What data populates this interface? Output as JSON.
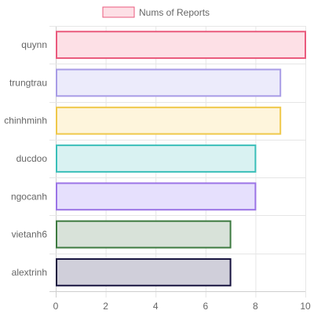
{
  "chart_data": {
    "type": "bar",
    "orientation": "horizontal",
    "categories": [
      "quynn",
      "trungtrau",
      "chinhminh",
      "ducdoo",
      "ngocanh",
      "vietanh6",
      "alextrinh"
    ],
    "series": [
      {
        "name": "Nums of Reports",
        "values": [
          10,
          9,
          9,
          8,
          8,
          7,
          7
        ]
      }
    ],
    "x_ticks": [
      "0",
      "2",
      "4",
      "6",
      "8",
      "10"
    ],
    "xlim": [
      0,
      10
    ],
    "grid": true,
    "legend_position": "top",
    "bar_colors": [
      {
        "fill": "#fde0e6",
        "border": "#ea5a7d"
      },
      {
        "fill": "#ecebfb",
        "border": "#a89ce6"
      },
      {
        "fill": "#fef5dc",
        "border": "#efc84a"
      },
      {
        "fill": "#d9f2f2",
        "border": "#3bbfb9"
      },
      {
        "fill": "#e6e0fd",
        "border": "#9b74e6"
      },
      {
        "fill": "#d8e2d9",
        "border": "#3d7a40"
      },
      {
        "fill": "#d0cfda",
        "border": "#16123e"
      }
    ],
    "legend_swatch": {
      "fill": "#fde0e6",
      "border": "#ea5a7d"
    }
  }
}
